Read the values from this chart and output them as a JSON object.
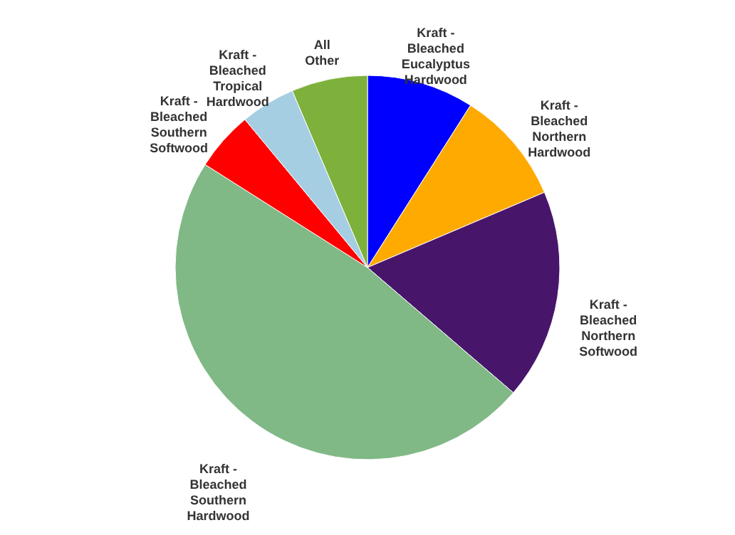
{
  "chart_data": {
    "type": "pie",
    "categories": [
      "Kraft - Bleached Eucalyptus Hardwood",
      "Kraft - Bleached Northern Hardwood",
      "Kraft - Bleached Northern Softwood",
      "Kraft - Bleached Southern Hardwood",
      "Kraft - Bleached Southern Softwood",
      "Kraft - Bleached Tropical Hardwood",
      "All Other"
    ],
    "values": [
      9,
      9.6,
      17.7,
      47.7,
      5,
      4.6,
      6.4
    ],
    "colors": [
      "#0000ff",
      "#ffaa00",
      "#47166b",
      "#80b886",
      "#ff0000",
      "#a6cee3",
      "#7db13b"
    ]
  }
}
